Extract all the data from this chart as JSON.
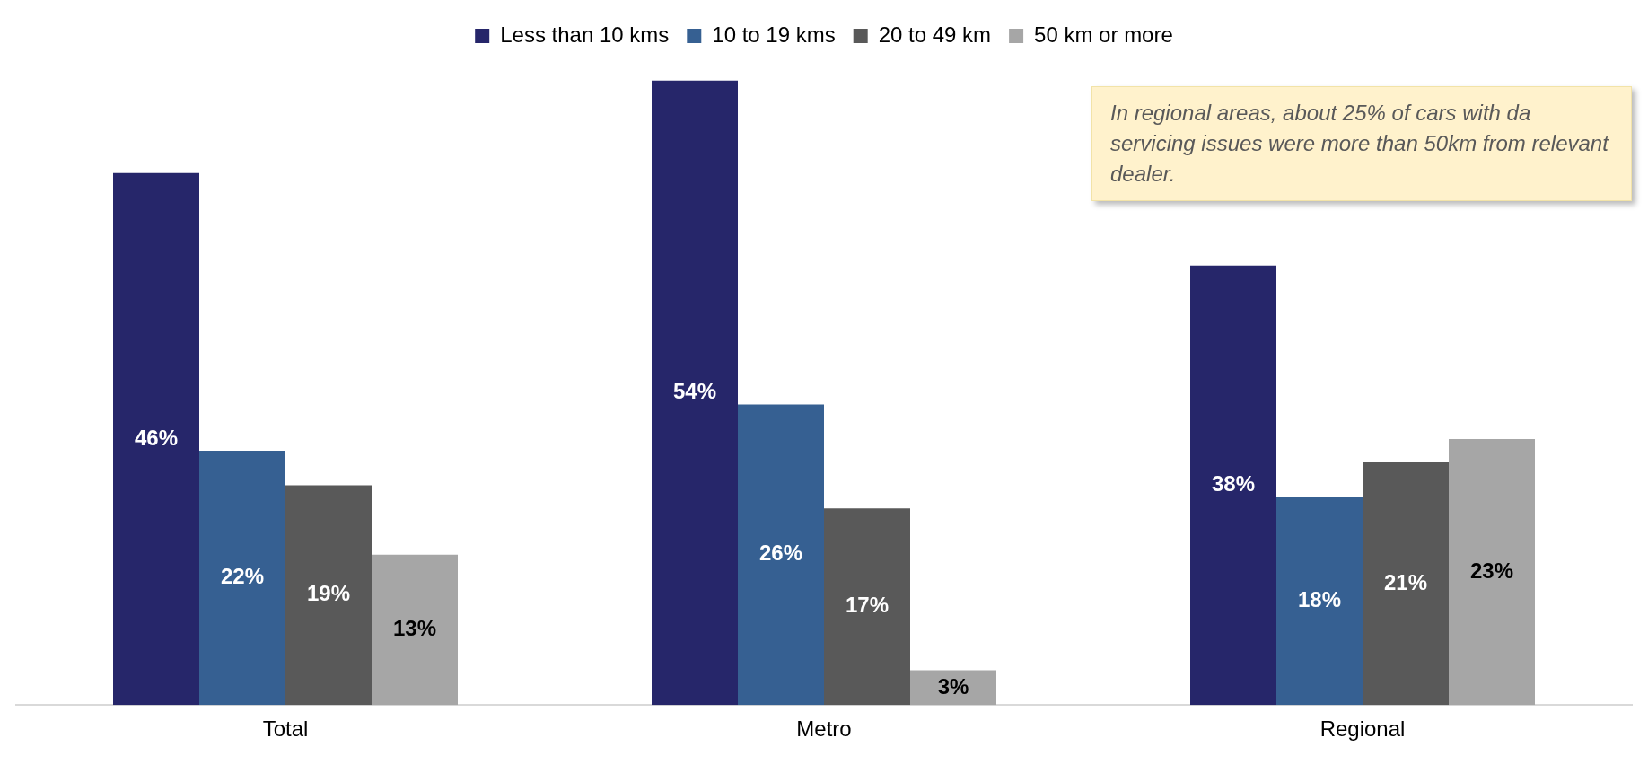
{
  "chart_data": {
    "type": "bar",
    "categories": [
      "Total",
      "Metro",
      "Regional"
    ],
    "series": [
      {
        "name": "Less than 10 kms",
        "color": "#26266a",
        "values": [
          46,
          54,
          38
        ],
        "value_labels": [
          "46%",
          "54%",
          "38%"
        ]
      },
      {
        "name": "10 to 19 kms",
        "color": "#366092",
        "values": [
          22,
          26,
          18
        ],
        "value_labels": [
          "22%",
          "26%",
          "18%"
        ]
      },
      {
        "name": "20 to 49 km",
        "color": "#595959",
        "values": [
          19,
          17,
          21
        ],
        "value_labels": [
          "19%",
          "17%",
          "21%"
        ]
      },
      {
        "name": "50 km or more",
        "color": "#a6a6a6",
        "values": [
          13,
          3,
          23
        ],
        "value_labels": [
          "13%",
          "3%",
          "23%"
        ]
      }
    ],
    "legend": "top",
    "annotations": [
      "In regional areas, about 25% of cars with da servicing issues were more than 50km from relevant dealer."
    ]
  }
}
